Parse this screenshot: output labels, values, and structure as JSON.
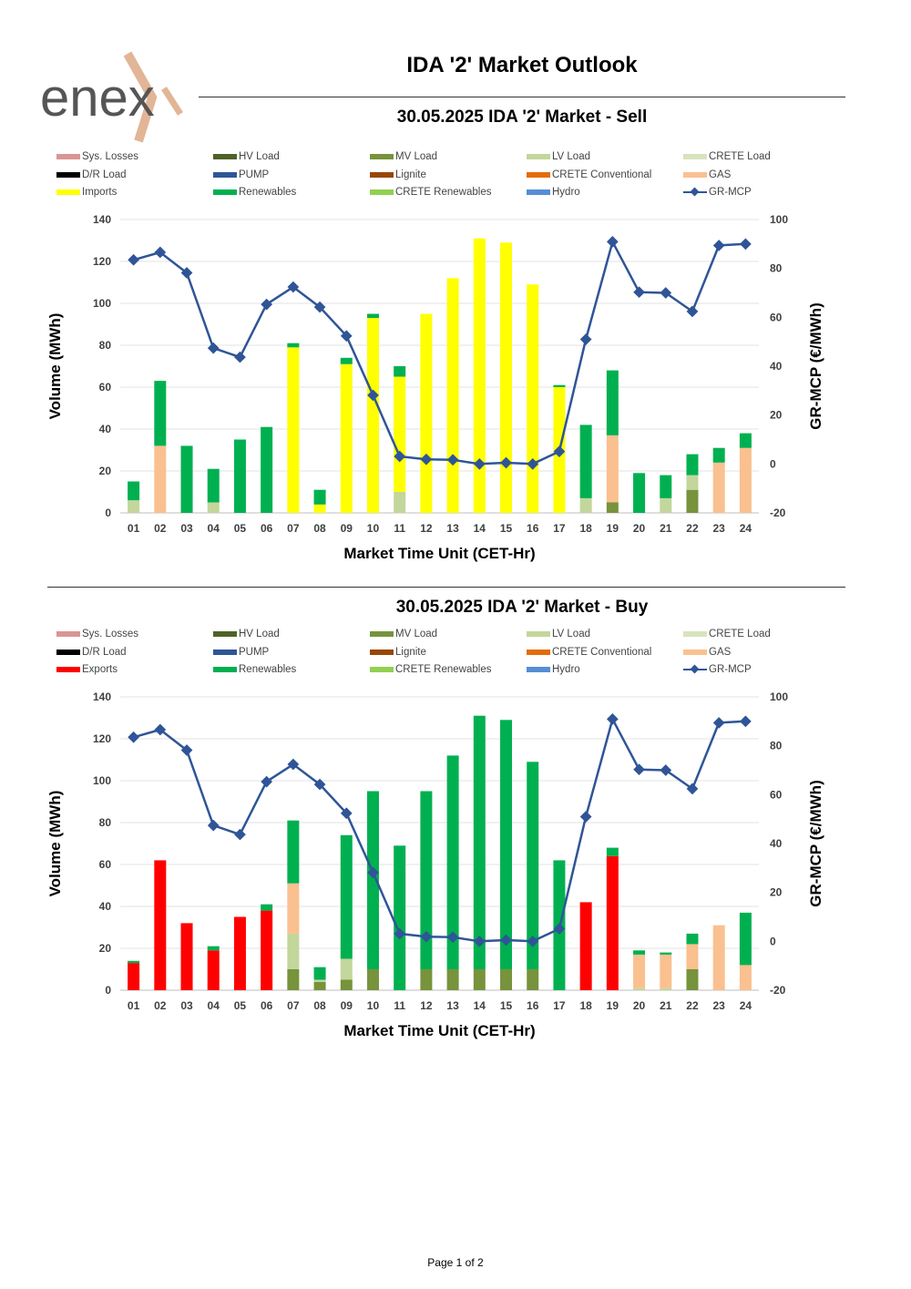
{
  "header": {
    "logo_text": "enex",
    "title": "IDA '2' Market Outlook"
  },
  "footer": {
    "page": "Page 1 of 2"
  },
  "colors": {
    "Sys. Losses": "#d99594",
    "HV Load": "#4f6228",
    "MV Load": "#77933c",
    "LV Load": "#c3d69b",
    "CRETE Load": "#d7e4bd",
    "D/R Load": "#000000",
    "PUMP": "#2f5597",
    "Lignite": "#974706",
    "CRETE Conventional": "#e46c0a",
    "GAS": "#fac090",
    "Imports": "#ffff00",
    "Exports": "#ff0000",
    "Renewables": "#00b050",
    "CRETE Renewables": "#92d050",
    "Hydro": "#558ed5",
    "GR-MCP": "#2f5597"
  },
  "sell": {
    "legend": [
      "Sys. Losses",
      "HV Load",
      "MV Load",
      "LV Load",
      "CRETE Load",
      "D/R Load",
      "PUMP",
      "Lignite",
      "CRETE Conventional",
      "GAS",
      "Imports",
      "Renewables",
      "CRETE Renewables",
      "Hydro",
      "GR-MCP"
    ]
  },
  "buy": {
    "legend": [
      "Sys. Losses",
      "HV Load",
      "MV Load",
      "LV Load",
      "CRETE Load",
      "D/R Load",
      "PUMP",
      "Lignite",
      "CRETE Conventional",
      "GAS",
      "Exports",
      "Renewables",
      "CRETE Renewables",
      "Hydro",
      "GR-MCP"
    ]
  },
  "chart_data": [
    {
      "type": "bar",
      "stacked": true,
      "title": "30.05.2025  IDA '2' Market - Sell",
      "xlabel": "Market Time Unit (CET-Hr)",
      "ylabel": "Volume (MWh)",
      "y2label": "GR-MCP (€/MWh)",
      "ylim": [
        0,
        140
      ],
      "y2lim": [
        -20,
        100
      ],
      "yticks": [
        0,
        20,
        40,
        60,
        80,
        100,
        120,
        140
      ],
      "y2ticks": [
        -20,
        0,
        20,
        40,
        60,
        80,
        100
      ],
      "categories": [
        "01",
        "02",
        "03",
        "04",
        "05",
        "06",
        "07",
        "08",
        "09",
        "10",
        "11",
        "12",
        "13",
        "14",
        "15",
        "16",
        "17",
        "18",
        "19",
        "20",
        "21",
        "22",
        "23",
        "24"
      ],
      "series": [
        {
          "name": "MV Load",
          "values": [
            0,
            0,
            0,
            0,
            0,
            0,
            0,
            0,
            0,
            0,
            0,
            0,
            0,
            0,
            0,
            0,
            0,
            0,
            5,
            0,
            0,
            11,
            0,
            0
          ]
        },
        {
          "name": "LV Load",
          "values": [
            6,
            0,
            0,
            5,
            0,
            0,
            0,
            0,
            0,
            0,
            10,
            0,
            0,
            0,
            0,
            0,
            0,
            7,
            0,
            0,
            7,
            7,
            0,
            0
          ]
        },
        {
          "name": "GAS",
          "values": [
            0,
            32,
            0,
            0,
            0,
            0,
            0,
            0,
            0,
            0,
            0,
            0,
            0,
            0,
            0,
            0,
            0,
            0,
            32,
            0,
            0,
            0,
            24,
            31
          ]
        },
        {
          "name": "Imports",
          "values": [
            0,
            0,
            0,
            0,
            0,
            0,
            79,
            4,
            71,
            93,
            55,
            95,
            112,
            131,
            129,
            109,
            60,
            0,
            0,
            0,
            0,
            0,
            0,
            0
          ]
        },
        {
          "name": "Renewables",
          "values": [
            9,
            31,
            32,
            16,
            35,
            41,
            2,
            7,
            3,
            2,
            5,
            0,
            0,
            0,
            0,
            0,
            1,
            35,
            31,
            19,
            11,
            10,
            7,
            7
          ]
        }
      ],
      "line": {
        "name": "GR-MCP",
        "axis": "y2",
        "values": [
          83.5,
          86.6,
          78.2,
          47.4,
          43.7,
          65.3,
          72.4,
          64.2,
          52.4,
          28.1,
          3.1,
          1.9,
          1.7,
          0,
          0.5,
          0,
          5.1,
          51,
          90.9,
          70.3,
          70,
          62.4,
          89.4,
          90
        ]
      }
    },
    {
      "type": "bar",
      "stacked": true,
      "title": "30.05.2025  IDA '2' Market - Buy",
      "xlabel": "Market Time Unit (CET-Hr)",
      "ylabel": "Volume (MWh)",
      "y2label": "GR-MCP (€/MWh)",
      "ylim": [
        0,
        140
      ],
      "y2lim": [
        -20,
        100
      ],
      "yticks": [
        0,
        20,
        40,
        60,
        80,
        100,
        120,
        140
      ],
      "y2ticks": [
        -20,
        0,
        20,
        40,
        60,
        80,
        100
      ],
      "categories": [
        "01",
        "02",
        "03",
        "04",
        "05",
        "06",
        "07",
        "08",
        "09",
        "10",
        "11",
        "12",
        "13",
        "14",
        "15",
        "16",
        "17",
        "18",
        "19",
        "20",
        "21",
        "22",
        "23",
        "24"
      ],
      "series": [
        {
          "name": "MV Load",
          "values": [
            0,
            0,
            0,
            0,
            0,
            0,
            10,
            4,
            5,
            10,
            0,
            10,
            10,
            10,
            10,
            10,
            0,
            0,
            0,
            0,
            0,
            10,
            0,
            0
          ]
        },
        {
          "name": "LV Load",
          "values": [
            0,
            0,
            0,
            0,
            0,
            0,
            17,
            1,
            10,
            0,
            0,
            0,
            0,
            0,
            0,
            0,
            0,
            0,
            0,
            1,
            1,
            0,
            0,
            0
          ]
        },
        {
          "name": "GAS",
          "values": [
            0,
            0,
            0,
            0,
            0,
            0,
            24,
            0,
            0,
            0,
            0,
            0,
            0,
            0,
            0,
            0,
            0,
            0,
            0,
            16,
            16,
            12,
            31,
            12
          ]
        },
        {
          "name": "Exports",
          "values": [
            13,
            62,
            32,
            19,
            35,
            38,
            0,
            0,
            0,
            0,
            0,
            0,
            0,
            0,
            0,
            0,
            0,
            42,
            64,
            0,
            0,
            0,
            0,
            0
          ]
        },
        {
          "name": "Renewables",
          "values": [
            1,
            0,
            0,
            2,
            0,
            3,
            30,
            6,
            59,
            85,
            69,
            85,
            102,
            121,
            119,
            99,
            62,
            0,
            4,
            2,
            1,
            5,
            0,
            25
          ]
        }
      ],
      "line": {
        "name": "GR-MCP",
        "axis": "y2",
        "values": [
          83.5,
          86.6,
          78.2,
          47.4,
          43.7,
          65.3,
          72.4,
          64.2,
          52.4,
          28.1,
          3.1,
          1.9,
          1.7,
          0,
          0.5,
          0,
          5.1,
          51,
          90.9,
          70.3,
          70,
          62.4,
          89.4,
          90
        ]
      }
    }
  ]
}
